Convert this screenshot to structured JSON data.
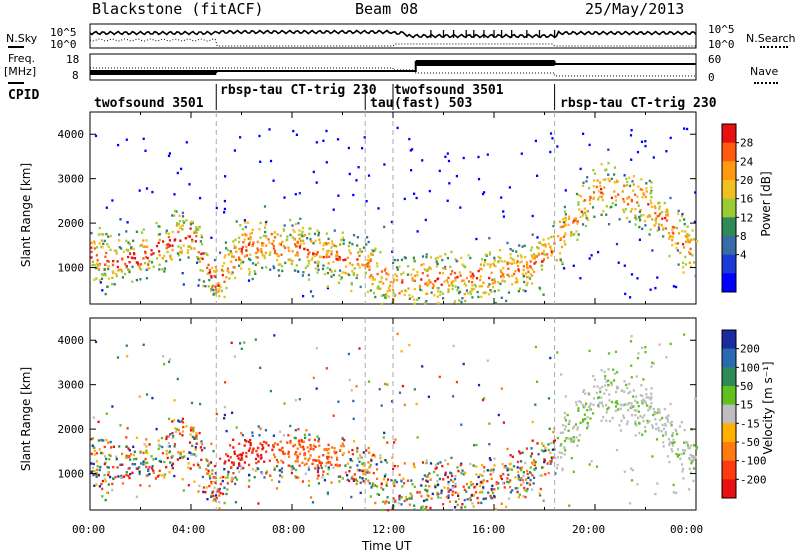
{
  "header": {
    "left": "Blackstone (fitACF)",
    "center": "Beam 08",
    "right": "25/May/2013"
  },
  "strip1": {
    "left_label": "N.Sky",
    "right_label": "N.Search",
    "left_ticks": [
      "10^5",
      "10^0"
    ],
    "right_ticks": [
      "10^5",
      "10^0"
    ]
  },
  "strip2": {
    "left_label_1": "Freq.",
    "left_label_2": "[MHz]",
    "right_label": "Nave",
    "left_ticks": [
      "18",
      "8"
    ],
    "right_ticks": [
      "60",
      "0"
    ]
  },
  "cpid": {
    "label": "CPID",
    "segments": [
      {
        "text": "twofsound 3501",
        "start_hour": 0.0
      },
      {
        "text": "rbsp-tau CT-trig 230",
        "start_hour": 5.0
      },
      {
        "text": "tau",
        "start_hour": 10.9
      },
      {
        "text": "twofsound 3501",
        "start_hour": 12.0
      },
      {
        "text": "(fast) 503",
        "start_hour": 12.0
      },
      {
        "text": "rbsp-tau CT-trig 230",
        "start_hour": 18.4
      }
    ]
  },
  "chart_data": [
    {
      "type": "heatmap",
      "quantity": "Power",
      "ylabel": "Slant Range [km]",
      "xlabel": "Time UT",
      "x_range_hours": [
        0,
        24
      ],
      "ylim": [
        180,
        4500
      ],
      "y_ticks": [
        1000,
        2000,
        3000,
        4000
      ],
      "colorbar": {
        "label": "Power [dB]",
        "ticks": [
          "28",
          "24",
          "20",
          "16",
          "12",
          "8",
          "4"
        ],
        "colors": [
          "#e81010",
          "#ff5a10",
          "#ff9a10",
          "#f0c020",
          "#9acd32",
          "#2e8b57",
          "#3a6aa8",
          "#1a3ad8",
          "#0000ff"
        ]
      },
      "range_band": [
        {
          "hour": 0.0,
          "range_km": 1350
        },
        {
          "hour": 1.0,
          "range_km": 1150
        },
        {
          "hour": 2.0,
          "range_km": 1250
        },
        {
          "hour": 3.0,
          "range_km": 1550
        },
        {
          "hour": 4.0,
          "range_km": 1800
        },
        {
          "hour": 5.0,
          "range_km": 600
        },
        {
          "hour": 6.0,
          "range_km": 1500
        },
        {
          "hour": 8.0,
          "range_km": 1500
        },
        {
          "hour": 10.0,
          "range_km": 1200
        },
        {
          "hour": 11.0,
          "range_km": 1100
        },
        {
          "hour": 12.0,
          "range_km": 600
        },
        {
          "hour": 14.0,
          "range_km": 800
        },
        {
          "hour": 16.0,
          "range_km": 850
        },
        {
          "hour": 18.0,
          "range_km": 1200
        },
        {
          "hour": 20.0,
          "range_km": 2800
        },
        {
          "hour": 22.0,
          "range_km": 2500
        },
        {
          "hour": 23.5,
          "range_km": 1500
        }
      ]
    },
    {
      "type": "heatmap",
      "quantity": "Velocity",
      "ylabel": "Slant Range [km]",
      "xlabel": "Time UT",
      "x_range_hours": [
        0,
        24
      ],
      "ylim": [
        180,
        4500
      ],
      "y_ticks": [
        1000,
        2000,
        3000,
        4000
      ],
      "colorbar": {
        "label": "Velocity [m s⁻¹]",
        "ticks": [
          "200",
          "100",
          "50",
          "15",
          "-15",
          "-50",
          "-100",
          "-200"
        ],
        "colors": [
          "#1a2aa0",
          "#2a6ab0",
          "#2e8b57",
          "#60c020",
          "#bebebe",
          "#ffb000",
          "#ff7a10",
          "#ff3a10",
          "#e81010"
        ]
      }
    }
  ],
  "x_ticks": [
    "00:00",
    "04:00",
    "08:00",
    "12:00",
    "16:00",
    "20:00",
    "00:00"
  ],
  "xlabel": "Time UT"
}
